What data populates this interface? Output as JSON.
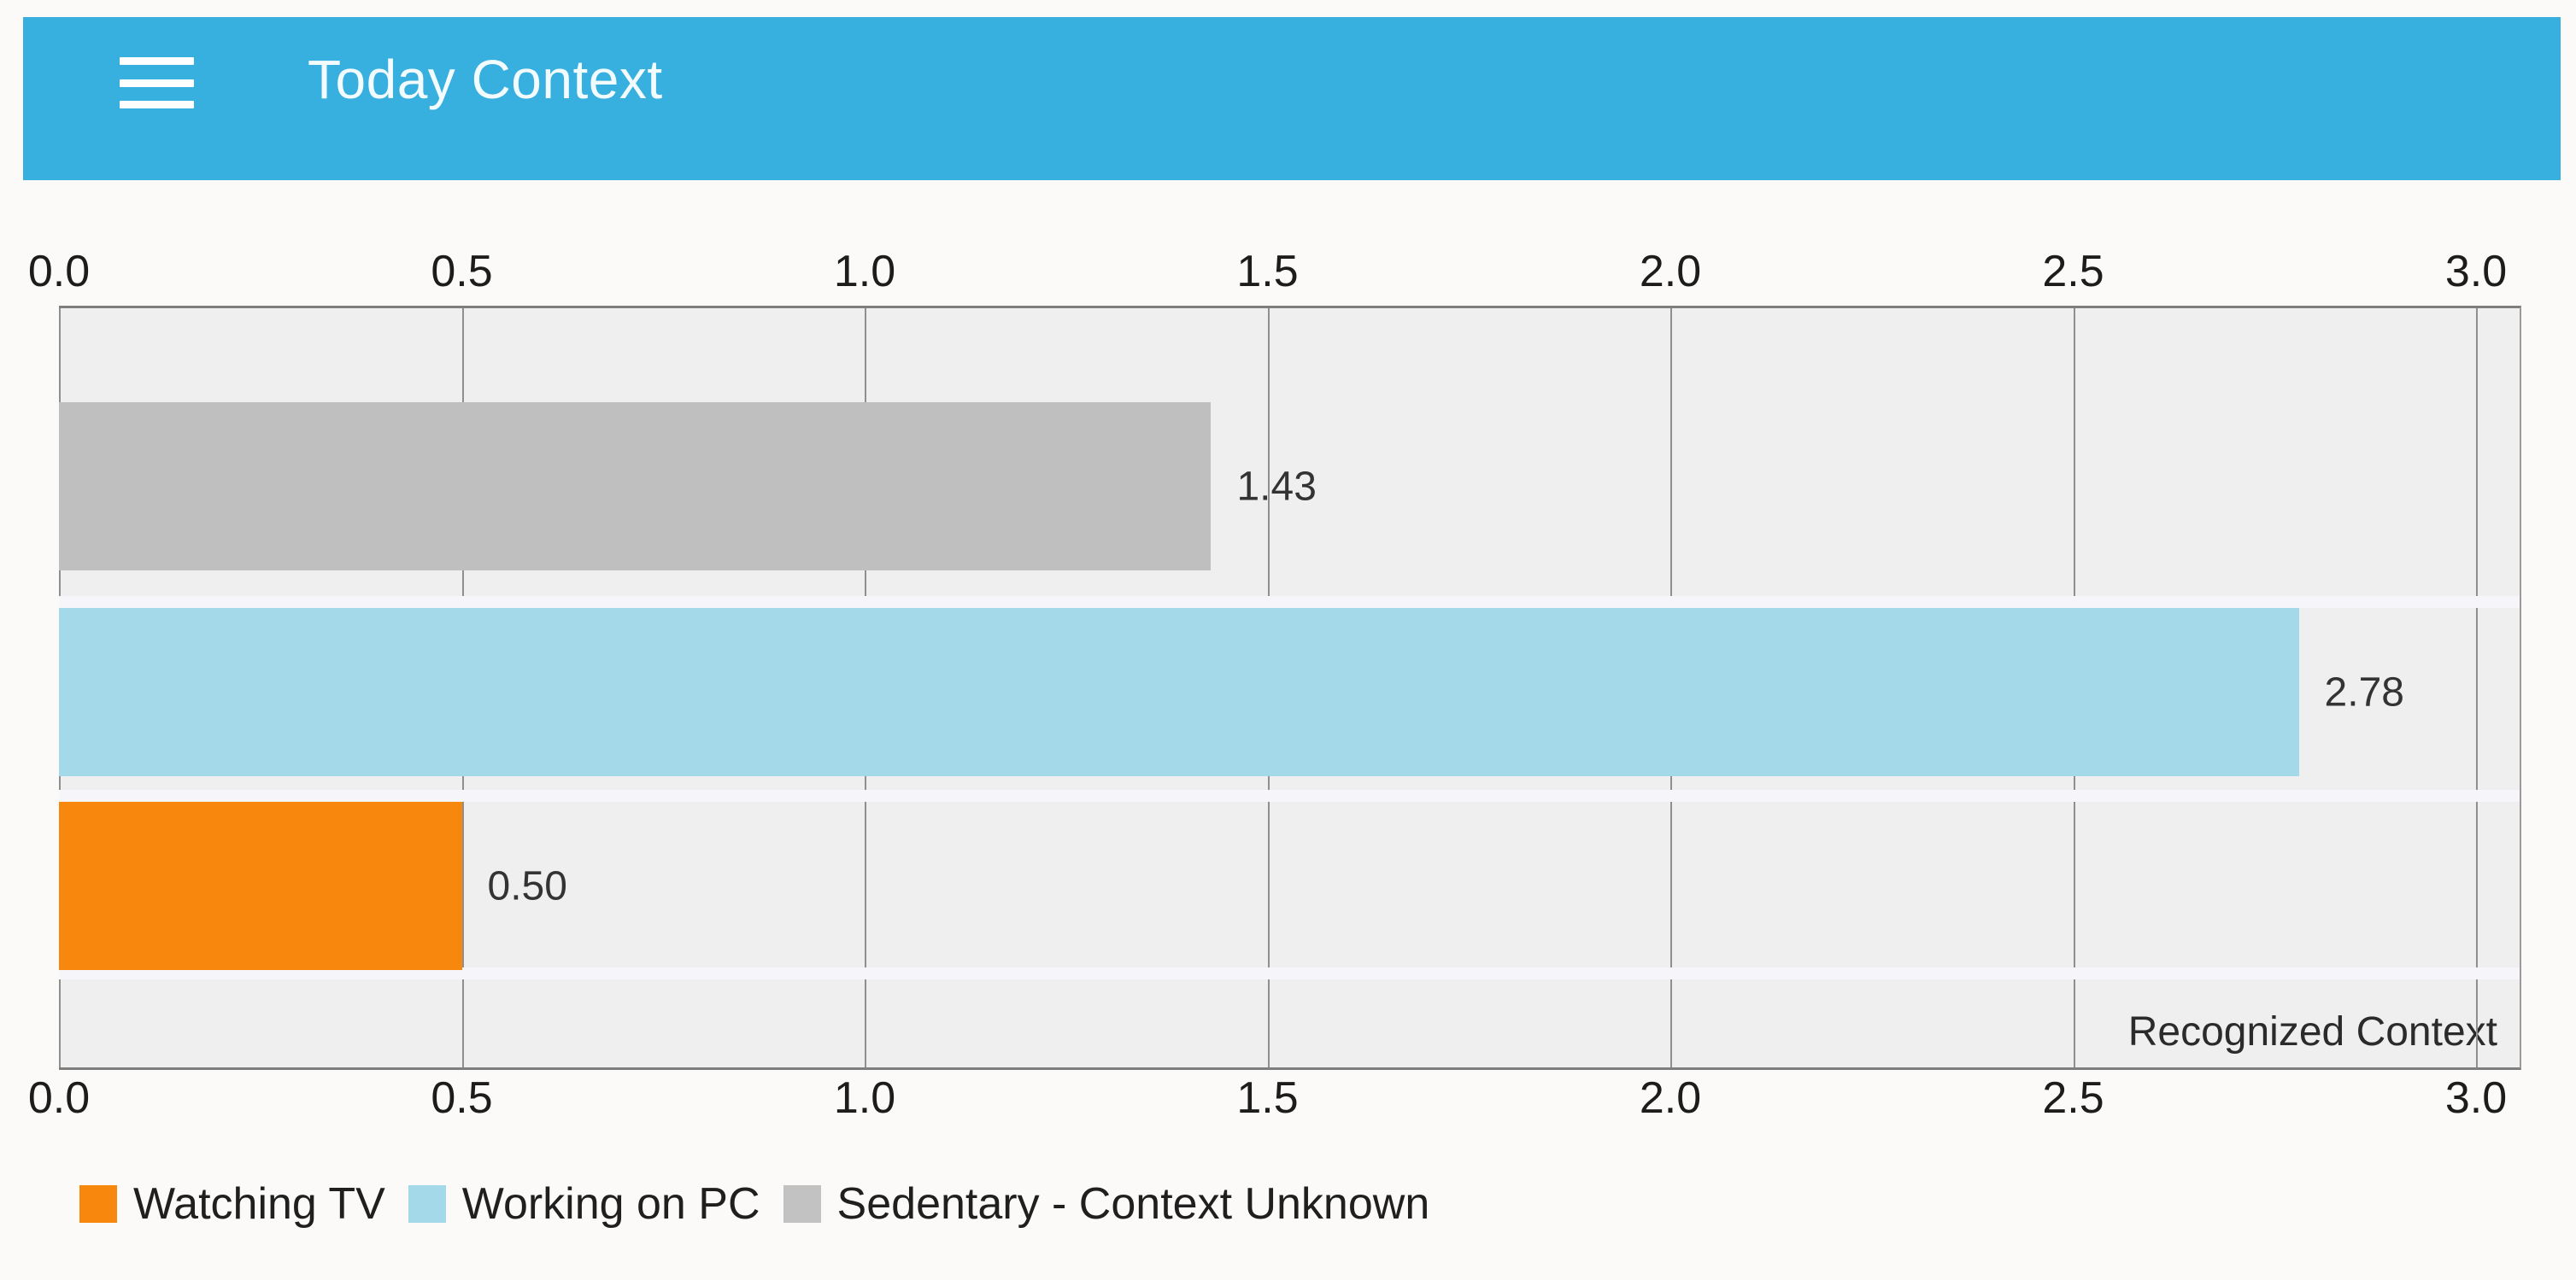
{
  "header": {
    "title": "Today Context",
    "menu_icon": "hamburger-icon"
  },
  "chart_data": {
    "type": "bar",
    "orientation": "horizontal",
    "title": "",
    "xlabel": "",
    "ylabel": "",
    "axis": {
      "min": 0.0,
      "max": 3.0,
      "tick_values": [
        0.0,
        0.5,
        1.0,
        1.5,
        2.0,
        2.5,
        3.0
      ],
      "tick_labels": [
        "0.0",
        "0.5",
        "1.0",
        "1.5",
        "2.0",
        "2.5",
        "3.0"
      ],
      "ticks_shown": "top and bottom",
      "grid": true
    },
    "annotation": "Recognized Context",
    "series": [
      {
        "name": "Sedentary - Context Unknown",
        "value": 1.43,
        "value_label": "1.43",
        "color": "#BFBFBF"
      },
      {
        "name": "Working on PC",
        "value": 2.78,
        "value_label": "2.78",
        "color": "#A3D9E9"
      },
      {
        "name": "Watching TV",
        "value": 0.5,
        "value_label": "0.50",
        "color": "#F8870D"
      }
    ],
    "legend_position": "bottom"
  },
  "legend": {
    "items": [
      {
        "label": "Watching TV",
        "color": "#F8870D"
      },
      {
        "label": "Working on PC",
        "color": "#A3D9E9"
      },
      {
        "label": "Sedentary - Context Unknown",
        "color": "#C2C2C2"
      }
    ]
  },
  "colors": {
    "header_bg": "#37AFDF",
    "header_text": "#F2FBFE",
    "page_bg": "#FBFAF8",
    "plot_bg": "#EFEFEF",
    "gridline": "#8F8F8F",
    "axis_line": "#7E7E7E",
    "tick_text": "#1C1C1C"
  }
}
